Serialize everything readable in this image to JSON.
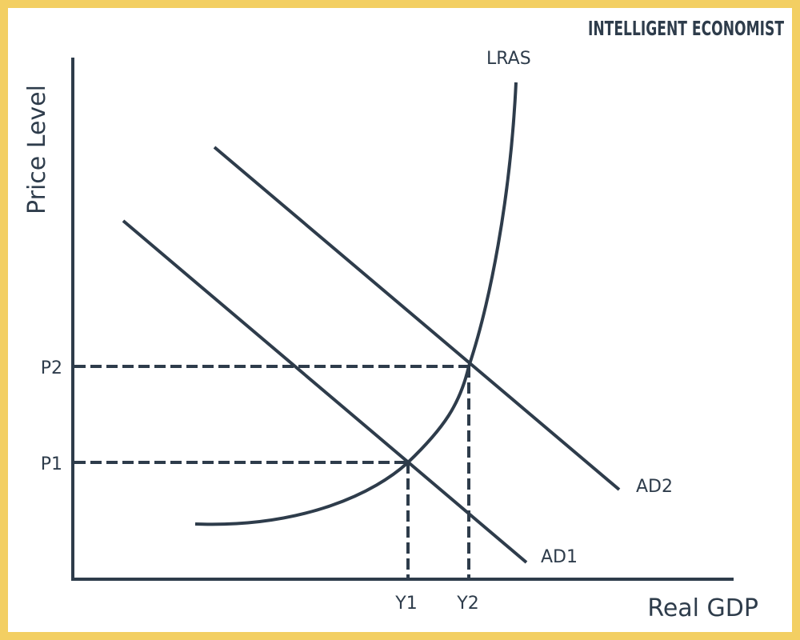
{
  "brand": "INTELLIGENT ECONOMIST",
  "axes": {
    "x_label": "Real GDP",
    "y_label": "Price Level"
  },
  "curves": {
    "lras": "LRAS",
    "ad1": "AD1",
    "ad2": "AD2"
  },
  "levels": {
    "p1": "P1",
    "p2": "P2",
    "y1": "Y1",
    "y2": "Y2"
  },
  "colors": {
    "ink": "#2e3c4b",
    "border": "#f3cf62",
    "background": "#ffffff"
  }
}
